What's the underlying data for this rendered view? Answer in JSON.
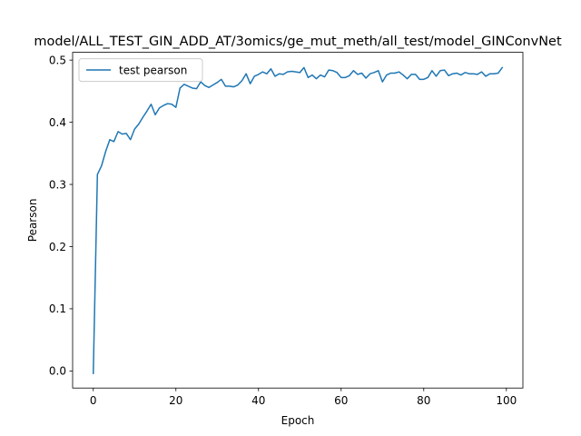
{
  "chart_data": {
    "type": "line",
    "title": "model/ALL_TEST_GIN_ADD_AT/3omics/ge_mut_meth/all_test/model_GINConvNet",
    "xlabel": "Epoch",
    "ylabel": "Pearson",
    "xlim": [
      -5,
      104
    ],
    "ylim": [
      -0.0275,
      0.5125
    ],
    "xticks": [
      0,
      20,
      40,
      60,
      80,
      100
    ],
    "yticks": [
      0.0,
      0.1,
      0.2,
      0.3,
      0.4,
      0.5
    ],
    "xtick_labels": [
      "0",
      "20",
      "40",
      "60",
      "80",
      "100"
    ],
    "ytick_labels": [
      "0.0",
      "0.1",
      "0.2",
      "0.3",
      "0.4",
      "0.5"
    ],
    "grid": false,
    "legend": {
      "position": "upper-left",
      "entries": [
        "test pearson"
      ]
    },
    "series": [
      {
        "name": "test pearson",
        "color": "#1f77b4",
        "x": [
          0,
          1,
          2,
          3,
          4,
          5,
          6,
          7,
          8,
          9,
          10,
          11,
          12,
          13,
          14,
          15,
          16,
          17,
          18,
          19,
          20,
          21,
          22,
          23,
          24,
          25,
          26,
          27,
          28,
          29,
          30,
          31,
          32,
          33,
          34,
          35,
          36,
          37,
          38,
          39,
          40,
          41,
          42,
          43,
          44,
          45,
          46,
          47,
          48,
          49,
          50,
          51,
          52,
          53,
          54,
          55,
          56,
          57,
          58,
          59,
          60,
          61,
          62,
          63,
          64,
          65,
          66,
          67,
          68,
          69,
          70,
          71,
          72,
          73,
          74,
          75,
          76,
          77,
          78,
          79,
          80,
          81,
          82,
          83,
          84,
          85,
          86,
          87,
          88,
          89,
          90,
          91,
          92,
          93,
          94,
          95,
          96,
          97,
          98,
          99
        ],
        "values": [
          -0.004,
          0.316,
          0.33,
          0.353,
          0.372,
          0.369,
          0.385,
          0.381,
          0.382,
          0.372,
          0.389,
          0.397,
          0.408,
          0.418,
          0.429,
          0.412,
          0.423,
          0.427,
          0.43,
          0.429,
          0.424,
          0.455,
          0.461,
          0.458,
          0.455,
          0.454,
          0.465,
          0.459,
          0.456,
          0.46,
          0.464,
          0.469,
          0.458,
          0.458,
          0.457,
          0.46,
          0.467,
          0.478,
          0.462,
          0.474,
          0.477,
          0.481,
          0.478,
          0.486,
          0.474,
          0.478,
          0.477,
          0.481,
          0.482,
          0.481,
          0.48,
          0.488,
          0.472,
          0.476,
          0.47,
          0.476,
          0.473,
          0.484,
          0.483,
          0.48,
          0.472,
          0.472,
          0.475,
          0.483,
          0.477,
          0.479,
          0.471,
          0.478,
          0.48,
          0.483,
          0.465,
          0.476,
          0.479,
          0.479,
          0.481,
          0.476,
          0.47,
          0.477,
          0.477,
          0.469,
          0.469,
          0.472,
          0.483,
          0.474,
          0.483,
          0.484,
          0.475,
          0.478,
          0.479,
          0.476,
          0.48,
          0.478,
          0.478,
          0.477,
          0.481,
          0.474,
          0.478,
          0.478,
          0.479,
          0.488
        ]
      }
    ]
  }
}
